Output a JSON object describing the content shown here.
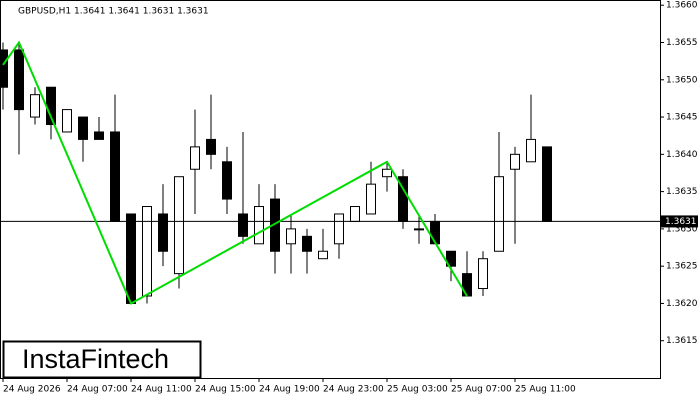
{
  "chart_data": {
    "type": "candlestick",
    "title": "GBPUSD,H1  1.3641 1.3641 1.3631 1.3631",
    "categories": [
      "24 Aug 2026",
      null,
      null,
      null,
      "24 Aug 07:00",
      null,
      null,
      null,
      "24 Aug 11:00",
      null,
      null,
      null,
      "24 Aug 15:00",
      null,
      null,
      null,
      "24 Aug 19:00",
      null,
      null,
      null,
      "24 Aug 23:00",
      null,
      null,
      null,
      "25 Aug 03:00",
      null,
      null,
      null,
      "25 Aug 07:00",
      null,
      null,
      null,
      "25 Aug 11:00",
      null,
      null
    ],
    "open": [
      1.3654,
      1.3654,
      1.3645,
      1.3649,
      1.3643,
      1.3645,
      1.3643,
      1.3643,
      1.3632,
      1.3621,
      1.3632,
      1.3624,
      1.3638,
      1.3642,
      1.3639,
      1.3632,
      1.3628,
      1.3634,
      1.3628,
      1.3629,
      1.3626,
      1.3628,
      1.3631,
      1.3632,
      1.3637,
      1.3637,
      1.363,
      1.3631,
      1.3627,
      1.3624,
      1.3622,
      1.3627,
      1.3638,
      1.3639,
      1.3641
    ],
    "high": [
      1.3655,
      1.3655,
      1.3649,
      1.3649,
      1.3646,
      1.3645,
      1.3645,
      1.3648,
      1.3632,
      1.3633,
      1.3636,
      1.3637,
      1.3646,
      1.3648,
      1.3641,
      1.3643,
      1.3636,
      1.3636,
      1.3632,
      1.363,
      1.363,
      1.3632,
      1.3633,
      1.3639,
      1.3639,
      1.3638,
      1.3632,
      1.3632,
      1.3627,
      1.3627,
      1.3627,
      1.3643,
      1.3641,
      1.3648,
      1.3641
    ],
    "low": [
      1.3646,
      1.364,
      1.3644,
      1.3642,
      1.3643,
      1.3639,
      1.3642,
      1.3631,
      1.362,
      1.362,
      1.3625,
      1.3622,
      1.3632,
      1.3638,
      1.3632,
      1.3628,
      1.3628,
      1.3624,
      1.3624,
      1.3624,
      1.3626,
      1.3626,
      1.3631,
      1.3632,
      1.3635,
      1.363,
      1.3628,
      1.3628,
      1.3623,
      1.3621,
      1.3621,
      1.3627,
      1.3628,
      1.3639,
      1.3631
    ],
    "close": [
      1.3649,
      1.3646,
      1.3648,
      1.3644,
      1.3646,
      1.3642,
      1.3642,
      1.3631,
      1.362,
      1.3633,
      1.3627,
      1.3637,
      1.3641,
      1.364,
      1.3634,
      1.3629,
      1.3633,
      1.3627,
      1.363,
      1.3627,
      1.3627,
      1.3632,
      1.3633,
      1.3636,
      1.3638,
      1.3631,
      1.363,
      1.3628,
      1.3625,
      1.3621,
      1.3626,
      1.3637,
      1.364,
      1.3642,
      1.3631
    ],
    "up_color": "#ffffff",
    "down_color": "#000000",
    "pattern": {
      "color": "#00dd00",
      "index": [
        0,
        1,
        8,
        24,
        29
      ],
      "price": [
        1.3652,
        1.3655,
        1.362,
        1.3639,
        1.3621
      ]
    },
    "current_price": 1.3631,
    "ylim": [
      1.361,
      1.36607
    ],
    "yticks": [
      1.3615,
      {
        "value": 1.362,
        "label": "1.3620"
      },
      1.3625,
      {
        "value": 1.363,
        "label": "1.3630"
      },
      1.3635,
      {
        "value": 1.364,
        "label": "1.3640"
      },
      1.3645,
      {
        "value": 1.365,
        "label": "1.3650"
      },
      1.3655,
      {
        "value": 1.366,
        "label": "1.3660"
      }
    ],
    "logo": "InstaFintech"
  }
}
